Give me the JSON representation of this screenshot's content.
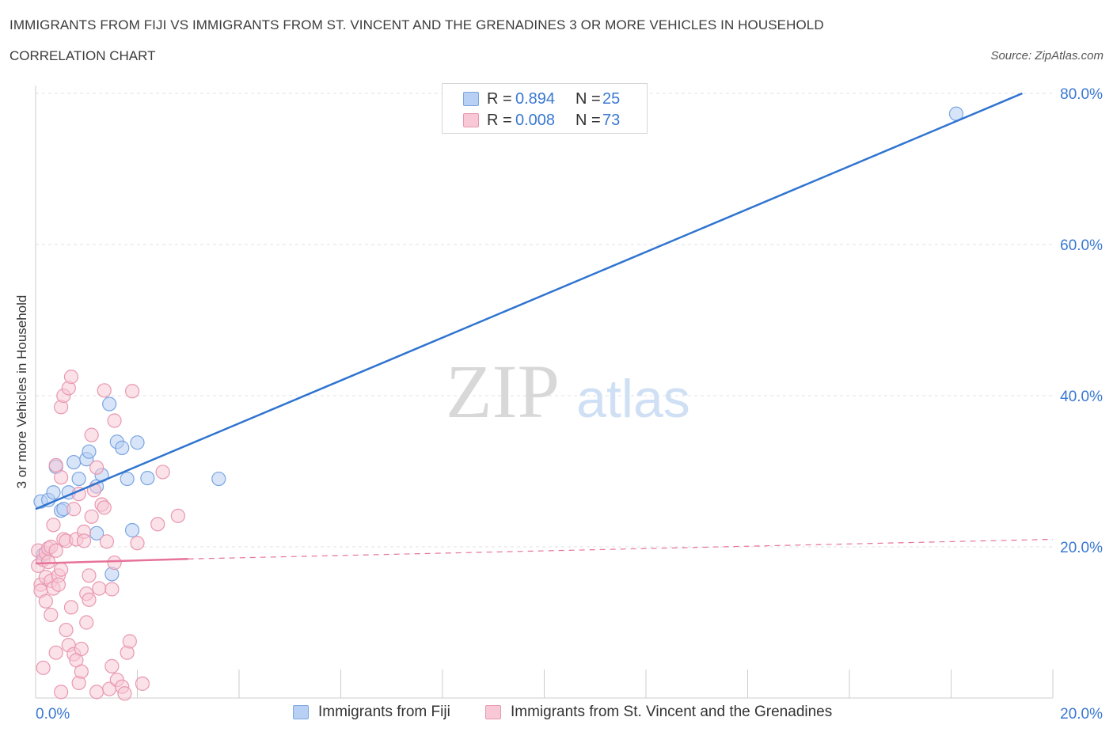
{
  "header": {
    "title_line1": "IMMIGRANTS FROM FIJI VS IMMIGRANTS FROM ST. VINCENT AND THE GRENADINES 3 OR MORE VEHICLES IN HOUSEHOLD",
    "title_line2": "CORRELATION CHART",
    "source": "Source: ZipAtlas.com"
  },
  "legend": {
    "rows": [
      {
        "r_label": "R =",
        "r_value": "0.894",
        "n_label": "N =",
        "n_value": "25",
        "color": "#b8d0f4",
        "border": "#7aa5e0"
      },
      {
        "r_label": "R =",
        "r_value": "0.008",
        "n_label": "N =",
        "n_value": "73",
        "color": "#f8c8d6",
        "border": "#e898b0"
      }
    ]
  },
  "bottom_legend": {
    "items": [
      {
        "label": "Immigrants from Fiji",
        "color": "#b8d0f4",
        "border": "#7aa5e0"
      },
      {
        "label": "Immigrants from St. Vincent and the Grenadines",
        "color": "#f8c8d6",
        "border": "#e898b0"
      }
    ]
  },
  "watermark": {
    "zip": "ZIP",
    "atlas": "atlas"
  },
  "chart_data": {
    "type": "scatter",
    "ylabel": "3 or more Vehicles in Household",
    "xlim": [
      0,
      20
    ],
    "ylim": [
      0,
      80
    ],
    "x_tick_labels": [
      {
        "value": 0,
        "label": "0.0%"
      },
      {
        "value": 20,
        "label": "20.0%"
      }
    ],
    "y_tick_labels": [
      {
        "value": 20,
        "label": "20.0%"
      },
      {
        "value": 40,
        "label": "40.0%"
      },
      {
        "value": 60,
        "label": "60.0%"
      },
      {
        "value": 80,
        "label": "80.0%"
      }
    ],
    "x_minor_ticks": [
      0,
      2,
      4,
      6,
      8,
      10,
      12,
      14,
      16,
      18,
      20
    ],
    "grid": true,
    "series": [
      {
        "name": "Immigrants from Fiji",
        "color": "#7aa5e0",
        "fill": "#b8d0f4",
        "line_color": "#2f74d0",
        "trend": {
          "x": [
            0,
            19.4
          ],
          "y": [
            25.0,
            80.0
          ],
          "dashed_x": null
        },
        "points": [
          [
            0.1,
            26.0
          ],
          [
            0.25,
            26.2
          ],
          [
            0.35,
            27.2
          ],
          [
            0.4,
            30.6
          ],
          [
            0.5,
            24.8
          ],
          [
            0.55,
            25.0
          ],
          [
            0.65,
            27.2
          ],
          [
            0.75,
            31.2
          ],
          [
            0.85,
            29.0
          ],
          [
            1.0,
            31.6
          ],
          [
            1.05,
            32.6
          ],
          [
            1.2,
            28.0
          ],
          [
            1.2,
            21.8
          ],
          [
            1.3,
            29.5
          ],
          [
            1.45,
            38.9
          ],
          [
            1.5,
            16.4
          ],
          [
            1.6,
            33.9
          ],
          [
            1.7,
            33.1
          ],
          [
            1.8,
            29.0
          ],
          [
            1.9,
            22.2
          ],
          [
            2.0,
            33.8
          ],
          [
            2.2,
            29.1
          ],
          [
            3.6,
            29.0
          ],
          [
            18.1,
            77.3
          ],
          [
            0.15,
            19.0
          ]
        ]
      },
      {
        "name": "Immigrants from St. Vincent and the Grenadines",
        "color": "#e898b0",
        "fill": "#f8c8d6",
        "line_color": "#e6739a",
        "trend": {
          "x": [
            0,
            3.0
          ],
          "y": [
            17.8,
            18.4
          ],
          "dashed_to": [
            20.0,
            21.0
          ]
        },
        "points": [
          [
            0.05,
            19.5
          ],
          [
            0.05,
            17.5
          ],
          [
            0.1,
            15.0
          ],
          [
            0.1,
            14.2
          ],
          [
            0.15,
            18.3
          ],
          [
            0.2,
            19.2
          ],
          [
            0.2,
            16.0
          ],
          [
            0.2,
            12.8
          ],
          [
            0.25,
            19.8
          ],
          [
            0.25,
            18.0
          ],
          [
            0.3,
            15.5
          ],
          [
            0.3,
            20.0
          ],
          [
            0.35,
            22.9
          ],
          [
            0.35,
            14.5
          ],
          [
            0.4,
            19.5
          ],
          [
            0.4,
            30.8
          ],
          [
            0.4,
            6.0
          ],
          [
            0.45,
            16.2
          ],
          [
            0.45,
            15.0
          ],
          [
            0.5,
            29.2
          ],
          [
            0.5,
            38.5
          ],
          [
            0.5,
            0.8
          ],
          [
            0.5,
            17.0
          ],
          [
            0.55,
            40.0
          ],
          [
            0.55,
            21.0
          ],
          [
            0.6,
            20.8
          ],
          [
            0.65,
            41.0
          ],
          [
            0.65,
            7.0
          ],
          [
            0.7,
            42.5
          ],
          [
            0.75,
            25.0
          ],
          [
            0.75,
            5.8
          ],
          [
            0.8,
            21.0
          ],
          [
            0.8,
            5.0
          ],
          [
            0.85,
            27.0
          ],
          [
            0.85,
            2.0
          ],
          [
            0.9,
            6.5
          ],
          [
            0.9,
            3.5
          ],
          [
            0.95,
            22.0
          ],
          [
            0.95,
            20.8
          ],
          [
            1.0,
            13.8
          ],
          [
            1.05,
            16.2
          ],
          [
            1.05,
            13.0
          ],
          [
            1.1,
            34.8
          ],
          [
            1.1,
            24.0
          ],
          [
            1.15,
            27.5
          ],
          [
            1.2,
            30.5
          ],
          [
            1.2,
            0.8
          ],
          [
            1.25,
            14.5
          ],
          [
            1.3,
            25.6
          ],
          [
            1.35,
            40.7
          ],
          [
            1.35,
            25.2
          ],
          [
            1.4,
            20.7
          ],
          [
            1.45,
            1.2
          ],
          [
            1.5,
            14.4
          ],
          [
            1.5,
            4.2
          ],
          [
            1.55,
            36.7
          ],
          [
            1.55,
            17.9
          ],
          [
            1.6,
            2.4
          ],
          [
            1.7,
            1.5
          ],
          [
            1.75,
            0.6
          ],
          [
            1.8,
            6.0
          ],
          [
            1.85,
            7.5
          ],
          [
            1.9,
            40.6
          ],
          [
            2.0,
            20.5
          ],
          [
            2.1,
            1.9
          ],
          [
            2.4,
            23.0
          ],
          [
            2.5,
            29.9
          ],
          [
            2.8,
            24.1
          ],
          [
            0.15,
            4.0
          ],
          [
            0.6,
            9.0
          ],
          [
            1.0,
            10.0
          ],
          [
            0.3,
            11.0
          ],
          [
            0.7,
            12.0
          ]
        ]
      }
    ]
  }
}
